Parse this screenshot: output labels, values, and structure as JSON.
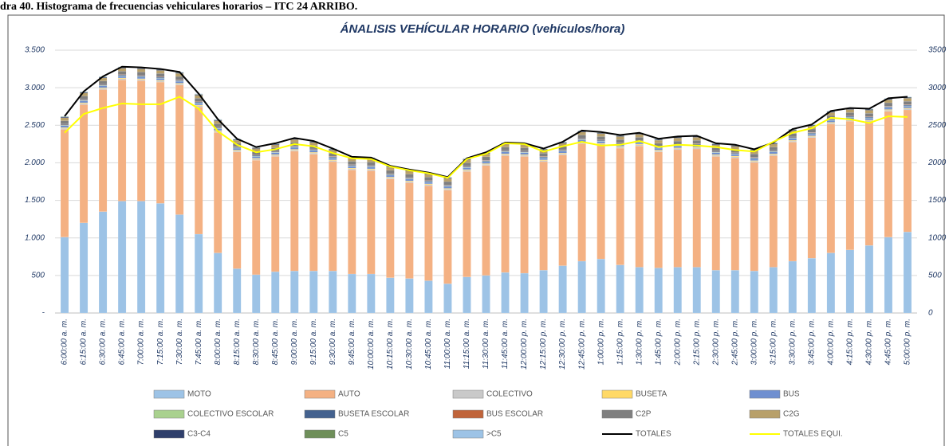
{
  "caption": "dra 40. Histograma de frecuencias vehiculares horarios – ITC 24 ARRIBO.",
  "chart_data": {
    "type": "bar",
    "stacked": true,
    "title": "ÁNALISIS VEHÍCULAR HORARIO (vehículos/hora)",
    "categories": [
      "6:00:00 a. m.",
      "6:15:00 a. m.",
      "6:30:00 a. m.",
      "6:45:00 a. m.",
      "7:00:00 a. m.",
      "7:15:00 a. m.",
      "7:30:00 a. m.",
      "7:45:00 a. m.",
      "8:00:00 a. m.",
      "8:15:00 a. m.",
      "8:30:00 a. m.",
      "8:45:00 a. m.",
      "9:00:00 a. m.",
      "9:15:00 a. m.",
      "9:30:00 a. m.",
      "9:45:00 a. m.",
      "10:00:00 a. m.",
      "10:15:00 a. m.",
      "10:30:00 a. m.",
      "10:45:00 a. m.",
      "11:00:00 a. m.",
      "11:15:00 a. m.",
      "11:30:00 a. m.",
      "11:45:00 a. m.",
      "12:00:00 p. m.",
      "12:15:00 p. m.",
      "12:30:00 p. m.",
      "12:45:00 p. m.",
      "1:00:00 p. m.",
      "1:15:00 p. m.",
      "1:30:00 p. m.",
      "1:45:00 p. m.",
      "2:00:00 p. m.",
      "2:15:00 p. m.",
      "2:30:00 p. m.",
      "2:45:00 p. m.",
      "3:00:00 p. m.",
      "3:15:00 p. m.",
      "3:30:00 p. m.",
      "3:45:00 p. m.",
      "4:00:00 p. m.",
      "4:15:00 p. m.",
      "4:30:00 p. m.",
      "4:45:00 p. m.",
      "5:00:00 p. m."
    ],
    "series": [
      {
        "name": "MOTO",
        "color": "#9dc3e6",
        "values": [
          1010,
          1200,
          1350,
          1490,
          1490,
          1460,
          1310,
          1050,
          800,
          590,
          510,
          550,
          560,
          560,
          560,
          520,
          520,
          470,
          460,
          430,
          390,
          480,
          500,
          540,
          530,
          570,
          630,
          690,
          720,
          640,
          610,
          600,
          610,
          610,
          570,
          570,
          560,
          610,
          690,
          730,
          800,
          840,
          900,
          1010,
          1080
        ]
      },
      {
        "name": "AUTO",
        "color": "#f4b183",
        "values": [
          1435,
          1575,
          1625,
          1615,
          1605,
          1615,
          1725,
          1695,
          1605,
          1555,
          1525,
          1535,
          1595,
          1555,
          1455,
          1385,
          1375,
          1315,
          1275,
          1265,
          1245,
          1405,
          1465,
          1555,
          1555,
          1445,
          1475,
          1565,
          1515,
          1555,
          1615,
          1545,
          1565,
          1575,
          1515,
          1495,
          1445,
          1485,
          1585,
          1605,
          1715,
          1715,
          1645,
          1675,
          1625
        ]
      },
      {
        "name": "COLECTIVO",
        "color": "#c9c9c9",
        "values": [
          15,
          15,
          15,
          15,
          15,
          15,
          15,
          15,
          15,
          15,
          15,
          15,
          15,
          15,
          15,
          15,
          15,
          15,
          15,
          15,
          15,
          15,
          15,
          15,
          15,
          15,
          15,
          15,
          15,
          15,
          15,
          15,
          15,
          15,
          15,
          15,
          15,
          15,
          15,
          15,
          15,
          15,
          15,
          15,
          15
        ]
      },
      {
        "name": "BUSETA",
        "color": "#ffd966",
        "values": [
          10,
          10,
          10,
          10,
          10,
          10,
          10,
          10,
          10,
          10,
          10,
          10,
          10,
          10,
          10,
          10,
          10,
          10,
          10,
          10,
          10,
          10,
          10,
          10,
          10,
          10,
          10,
          10,
          10,
          10,
          10,
          10,
          10,
          10,
          10,
          10,
          10,
          10,
          10,
          10,
          10,
          10,
          10,
          10,
          10
        ]
      },
      {
        "name": "BUS",
        "color": "#6f8fd0",
        "values": [
          25,
          25,
          25,
          25,
          25,
          25,
          25,
          25,
          25,
          25,
          25,
          25,
          25,
          25,
          25,
          25,
          25,
          25,
          25,
          25,
          25,
          25,
          25,
          25,
          25,
          25,
          25,
          25,
          25,
          25,
          25,
          25,
          25,
          25,
          25,
          25,
          25,
          25,
          25,
          25,
          25,
          25,
          25,
          25,
          25
        ]
      },
      {
        "name": "COLECTIVO ESCOLAR",
        "color": "#a9d18e",
        "values": [
          5,
          5,
          5,
          5,
          5,
          5,
          5,
          5,
          5,
          5,
          5,
          5,
          5,
          5,
          5,
          5,
          5,
          5,
          5,
          5,
          5,
          5,
          5,
          5,
          5,
          5,
          5,
          5,
          5,
          5,
          5,
          5,
          5,
          5,
          5,
          5,
          5,
          5,
          5,
          5,
          5,
          5,
          5,
          5,
          5
        ]
      },
      {
        "name": "BUSETA ESCOLAR",
        "color": "#44628f",
        "values": [
          10,
          10,
          10,
          10,
          10,
          10,
          10,
          10,
          10,
          10,
          10,
          10,
          10,
          10,
          10,
          10,
          10,
          10,
          10,
          10,
          10,
          10,
          10,
          10,
          10,
          10,
          10,
          10,
          10,
          10,
          10,
          10,
          10,
          10,
          10,
          10,
          10,
          10,
          10,
          10,
          10,
          10,
          10,
          10,
          10
        ]
      },
      {
        "name": "BUS ESCOLAR",
        "color": "#c0643a",
        "values": [
          5,
          5,
          5,
          5,
          5,
          5,
          5,
          5,
          5,
          5,
          5,
          5,
          5,
          5,
          5,
          5,
          5,
          5,
          5,
          5,
          5,
          5,
          5,
          5,
          5,
          5,
          5,
          5,
          5,
          5,
          5,
          5,
          5,
          5,
          5,
          5,
          5,
          5,
          5,
          5,
          5,
          5,
          5,
          5,
          5
        ]
      },
      {
        "name": "C2P",
        "color": "#7f7f7f",
        "values": [
          45,
          45,
          45,
          45,
          45,
          45,
          45,
          45,
          45,
          45,
          45,
          45,
          45,
          45,
          45,
          45,
          45,
          45,
          45,
          45,
          45,
          45,
          45,
          45,
          45,
          45,
          45,
          45,
          45,
          45,
          45,
          45,
          45,
          45,
          45,
          45,
          45,
          45,
          45,
          45,
          45,
          45,
          45,
          45,
          45
        ]
      },
      {
        "name": "C2G",
        "color": "#b8a06a",
        "values": [
          40,
          40,
          40,
          40,
          40,
          40,
          40,
          40,
          40,
          40,
          40,
          40,
          40,
          40,
          40,
          40,
          40,
          40,
          40,
          40,
          40,
          40,
          40,
          40,
          40,
          40,
          40,
          40,
          40,
          40,
          40,
          40,
          40,
          40,
          40,
          40,
          40,
          40,
          40,
          40,
          40,
          40,
          40,
          40,
          40
        ]
      },
      {
        "name": "C3-C4",
        "color": "#2f3f6b",
        "values": [
          10,
          10,
          10,
          10,
          10,
          10,
          10,
          10,
          10,
          10,
          10,
          10,
          10,
          10,
          10,
          10,
          10,
          10,
          10,
          10,
          10,
          10,
          10,
          10,
          10,
          10,
          10,
          10,
          10,
          10,
          10,
          10,
          10,
          10,
          10,
          10,
          10,
          10,
          10,
          10,
          10,
          10,
          10,
          10,
          10
        ]
      },
      {
        "name": "C5",
        "color": "#6f8f5a",
        "values": [
          5,
          5,
          5,
          5,
          5,
          5,
          5,
          5,
          5,
          5,
          5,
          5,
          5,
          5,
          5,
          5,
          5,
          5,
          5,
          5,
          5,
          5,
          5,
          5,
          5,
          5,
          5,
          5,
          5,
          5,
          5,
          5,
          5,
          5,
          5,
          5,
          5,
          5,
          5,
          5,
          5,
          5,
          5,
          5,
          5
        ]
      },
      {
        "name": ">C5",
        "color": "#9dc3e6",
        "values": [
          5,
          5,
          5,
          5,
          5,
          5,
          5,
          5,
          5,
          5,
          5,
          5,
          5,
          5,
          5,
          5,
          5,
          5,
          5,
          5,
          5,
          5,
          5,
          5,
          5,
          5,
          5,
          5,
          5,
          5,
          5,
          5,
          5,
          5,
          5,
          5,
          5,
          5,
          5,
          5,
          5,
          5,
          5,
          5,
          5
        ]
      },
      {
        "name": "TOTALES",
        "color": "#000000",
        "type": "line",
        "axis": "y2",
        "values": [
          2620,
          2950,
          3150,
          3280,
          3270,
          3250,
          3210,
          2920,
          2580,
          2320,
          2210,
          2260,
          2330,
          2290,
          2190,
          2080,
          2070,
          1960,
          1910,
          1870,
          1810,
          2060,
          2140,
          2270,
          2260,
          2190,
          2280,
          2430,
          2410,
          2370,
          2400,
          2320,
          2350,
          2360,
          2260,
          2240,
          2180,
          2270,
          2450,
          2510,
          2690,
          2730,
          2720,
          2860,
          2880
        ]
      },
      {
        "name": "TOTALES EQUI.",
        "color": "#ffff00",
        "type": "line",
        "axis": "y2",
        "values": [
          2400,
          2650,
          2730,
          2790,
          2780,
          2780,
          2880,
          2720,
          2420,
          2240,
          2140,
          2180,
          2250,
          2220,
          2130,
          2060,
          2050,
          1950,
          1900,
          1860,
          1800,
          2050,
          2120,
          2260,
          2250,
          2150,
          2220,
          2280,
          2230,
          2240,
          2290,
          2210,
          2240,
          2230,
          2210,
          2170,
          2150,
          2280,
          2400,
          2460,
          2600,
          2580,
          2530,
          2620,
          2610
        ]
      }
    ],
    "ylim": [
      0,
      3500
    ],
    "yticks": [
      {
        "value": 0,
        "label": "-"
      },
      500,
      {
        "value": 1000,
        "label": "1.000"
      },
      {
        "value": 1500,
        "label": "1.500"
      },
      {
        "value": 2000,
        "label": "2.000"
      },
      {
        "value": 2500,
        "label": "2.500"
      },
      {
        "value": 3000,
        "label": "3.000"
      },
      {
        "value": 3500,
        "label": "3.500"
      }
    ],
    "y2lim": [
      0,
      3500
    ],
    "y2ticks": [
      0,
      500,
      1000,
      1500,
      2000,
      2500,
      3000,
      3500
    ],
    "grid": true,
    "legend": "bottom"
  }
}
